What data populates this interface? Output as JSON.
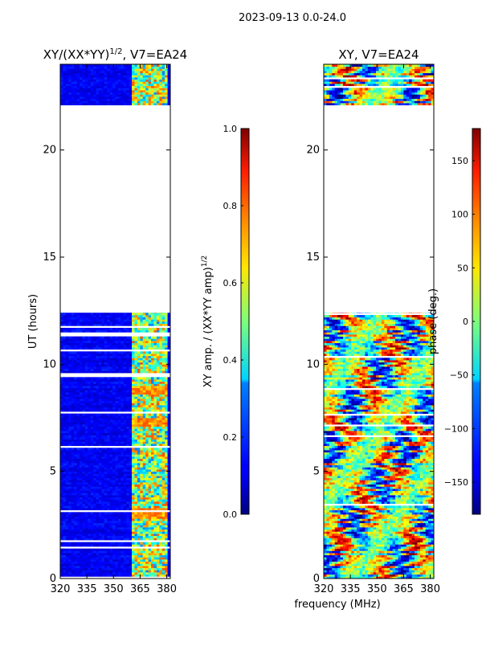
{
  "figure": {
    "suptitle": "2023-09-13 0.0-24.0",
    "shared_xlabel": "frequency (MHz)"
  },
  "chart_data": [
    {
      "type": "heatmap",
      "title_main": "XY/(XX*YY)",
      "title_sup": "1/2",
      "title_tail": ", V7=EA24",
      "ylabel": "UT (hours)",
      "xlim": [
        320,
        382
      ],
      "ylim": [
        0,
        24
      ],
      "xticks": [
        {
          "v": 320,
          "t": "320"
        },
        {
          "v": 335,
          "t": "335"
        },
        {
          "v": 350,
          "t": "350"
        },
        {
          "v": 365,
          "t": "365"
        },
        {
          "v": 380,
          "t": "380"
        }
      ],
      "yticks": [
        {
          "v": 0,
          "t": "0"
        },
        {
          "v": 5,
          "t": "5"
        },
        {
          "v": 10,
          "t": "10"
        },
        {
          "v": 15,
          "t": "15"
        },
        {
          "v": 20,
          "t": "20"
        }
      ],
      "data_ranges_ut": [
        [
          0,
          12.4
        ],
        [
          22.1,
          24
        ]
      ],
      "active_band_mhz": [
        360,
        380
      ],
      "colorbar": {
        "label_main": "XY amp. / (XX*YY amp)",
        "label_sup": "1/2",
        "vmin": 0,
        "vmax": 1,
        "ticks": [
          {
            "v": 0,
            "t": "0.0"
          },
          {
            "v": 0.2,
            "t": "0.2"
          },
          {
            "v": 0.4,
            "t": "0.4"
          },
          {
            "v": 0.6,
            "t": "0.6"
          },
          {
            "v": 0.8,
            "t": "0.8"
          },
          {
            "v": 1,
            "t": "1.0"
          }
        ]
      }
    },
    {
      "type": "heatmap",
      "title_main": "XY, V7=EA24",
      "ylabel": "",
      "xlim": [
        320,
        382
      ],
      "ylim": [
        0,
        24
      ],
      "xticks": [
        {
          "v": 320,
          "t": "320"
        },
        {
          "v": 335,
          "t": "335"
        },
        {
          "v": 350,
          "t": "350"
        },
        {
          "v": 365,
          "t": "365"
        },
        {
          "v": 380,
          "t": "380"
        }
      ],
      "yticks": [
        {
          "v": 0,
          "t": "0"
        },
        {
          "v": 5,
          "t": "5"
        },
        {
          "v": 10,
          "t": "10"
        },
        {
          "v": 15,
          "t": "15"
        },
        {
          "v": 20,
          "t": "20"
        }
      ],
      "data_ranges_ut": [
        [
          0,
          12.4
        ],
        [
          22.1,
          24
        ]
      ],
      "colorbar": {
        "label_main": "phase (deg.)",
        "vmin": -180,
        "vmax": 180,
        "ticks": [
          {
            "v": -150,
            "t": "−150"
          },
          {
            "v": -100,
            "t": "−100"
          },
          {
            "v": -50,
            "t": "−50"
          },
          {
            "v": 0,
            "t": "0"
          },
          {
            "v": 50,
            "t": "50"
          },
          {
            "v": 100,
            "t": "100"
          },
          {
            "v": 150,
            "t": "150"
          }
        ]
      }
    }
  ]
}
